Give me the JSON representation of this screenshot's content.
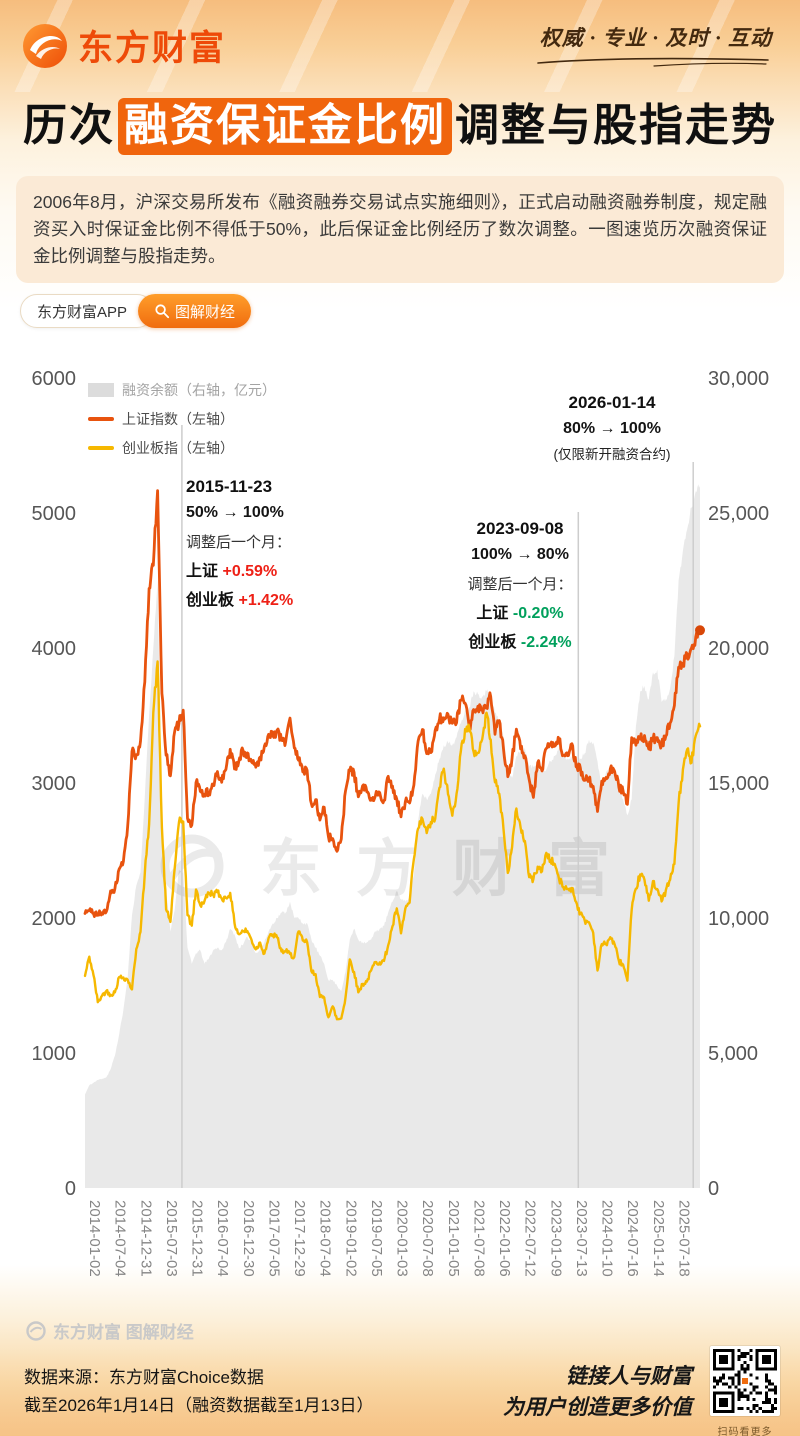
{
  "header": {
    "brand": "东方财富",
    "slogan": "权威 · 专业 · 及时 · 互动"
  },
  "title": {
    "prefix": "历次",
    "highlight": "融资保证金比例",
    "suffix": "调整与股指走势"
  },
  "intro": "2006年8月，沪深交易所发布《融资融券交易试点实施细则》，正式启动融资融券制度，规定融资买入时保证金比例不得低于50%，此后保证金比例经历了数次调整。一图速览历次融资保证金比例调整与股指走势。",
  "pills": {
    "app": "东方财富APP",
    "column": "图解财经"
  },
  "watermark": {
    "center": "东方财富",
    "footer": "东方财富 图解财经"
  },
  "chart_data": {
    "type": "line",
    "title": "历次融资保证金比例调整与股指走势",
    "months_start": "2014-01",
    "months_end": "2026-01",
    "left_axis": {
      "min": 0,
      "max": 6000,
      "label_ticks": [
        "6000",
        "5000",
        "4000",
        "3000",
        "2000",
        "1000",
        "0"
      ]
    },
    "right_axis": {
      "min": 0,
      "max": 30000,
      "label_ticks": [
        "30,000",
        "25,000",
        "20,000",
        "15,000",
        "10,000",
        "5,000",
        "0"
      ]
    },
    "x_tick_labels": [
      "2014-01-02",
      "2014-07-04",
      "2014-12-31",
      "2015-07-03",
      "2015-12-31",
      "2016-07-04",
      "2016-12-30",
      "2017-07-05",
      "2017-12-29",
      "2018-07-04",
      "2019-01-02",
      "2019-07-05",
      "2020-01-03",
      "2020-07-08",
      "2021-01-05",
      "2021-07-08",
      "2022-01-06",
      "2022-07-12",
      "2023-01-09",
      "2023-07-13",
      "2024-01-10",
      "2024-07-16",
      "2025-01-14",
      "2025-07-18"
    ],
    "x_tick_indices": [
      0,
      6,
      12,
      18,
      24,
      30,
      36,
      42,
      48,
      54,
      60,
      66,
      72,
      78,
      84,
      90,
      96,
      102,
      108,
      114,
      120,
      126,
      132,
      138
    ],
    "legend": [
      {
        "label": "融资余额（右轴，亿元）",
        "type": "area",
        "color": "#dcdcdc"
      },
      {
        "label": "上证指数（左轴）",
        "type": "line",
        "color": "#e8530e"
      },
      {
        "label": "创业板指（左轴）",
        "type": "line",
        "color": "#f6b800"
      }
    ],
    "series": [
      {
        "name": "融资余额",
        "axis": "right",
        "type": "area",
        "color": "#e6e6e6",
        "unit": "亿元",
        "values": [
          3465,
          3800,
          3900,
          4000,
          4050,
          4100,
          4400,
          4900,
          5700,
          6600,
          7800,
          10100,
          11200,
          11700,
          14500,
          17500,
          20000,
          22500,
          13500,
          11000,
          9500,
          10300,
          11800,
          11700,
          8900,
          8300,
          8700,
          8800,
          8300,
          8500,
          8800,
          8900,
          8800,
          9100,
          9600,
          9400,
          8900,
          9000,
          9300,
          9100,
          8700,
          8800,
          9100,
          9500,
          9800,
          10000,
          10200,
          10200,
          10600,
          10000,
          10000,
          9800,
          9800,
          9200,
          8900,
          8600,
          8300,
          7700,
          7700,
          7500,
          7300,
          8000,
          9200,
          9600,
          9200,
          9100,
          9100,
          9200,
          9500,
          9600,
          9700,
          10200,
          10600,
          11000,
          10700,
          10600,
          10800,
          11600,
          13600,
          14600,
          14400,
          14600,
          15300,
          15900,
          16400,
          16500,
          16400,
          16700,
          17200,
          17700,
          17800,
          18400,
          18300,
          18200,
          18400,
          18300,
          17600,
          17300,
          16700,
          15400,
          15200,
          16000,
          16200,
          16300,
          15600,
          15600,
          15700,
          15400,
          15500,
          15800,
          16000,
          16300,
          16100,
          15900,
          15900,
          15700,
          15900,
          16100,
          16600,
          16500,
          15800,
          14700,
          15400,
          15400,
          15300,
          14800,
          14400,
          13800,
          14400,
          17100,
          18400,
          18600,
          18100,
          19100,
          19200,
          18000,
          18100,
          18500,
          19700,
          22500,
          23600,
          24400,
          25200,
          25800,
          26000
        ]
      },
      {
        "name": "上证指数",
        "axis": "left",
        "type": "line",
        "color": "#e8530e",
        "values": [
          2033,
          2056,
          2033,
          2026,
          2039,
          2048,
          2201,
          2217,
          2363,
          2420,
          2682,
          3235,
          3210,
          3310,
          3748,
          4442,
          4612,
          5166,
          3664,
          3206,
          3053,
          3383,
          3445,
          3539,
          2738,
          2688,
          3004,
          2938,
          2917,
          2930,
          2979,
          3085,
          3005,
          3100,
          3250,
          3104,
          3159,
          3242,
          3223,
          3155,
          3117,
          3192,
          3273,
          3361,
          3349,
          3393,
          3317,
          3307,
          3481,
          3259,
          3169,
          3082,
          3095,
          2847,
          2876,
          2725,
          2821,
          2603,
          2588,
          2494,
          2585,
          2941,
          3091,
          3078,
          2898,
          2979,
          2933,
          2886,
          2905,
          2929,
          2872,
          3050,
          2977,
          2880,
          2750,
          2860,
          2852,
          2985,
          3310,
          3396,
          3218,
          3225,
          3392,
          3473,
          3483,
          3509,
          3442,
          3447,
          3615,
          3591,
          3397,
          3544,
          3568,
          3547,
          3564,
          3640,
          3361,
          3462,
          3252,
          3047,
          3186,
          3399,
          3253,
          3202,
          3024,
          2893,
          3151,
          3089,
          3256,
          3280,
          3273,
          3323,
          3205,
          3202,
          3291,
          3120,
          3110,
          3019,
          3030,
          2975,
          2789,
          3015,
          3041,
          3105,
          3087,
          2967,
          2939,
          2842,
          3336,
          3280,
          3326,
          3352,
          3251,
          3321,
          3336,
          3279,
          3347,
          3444,
          3573,
          3858,
          3883,
          3955,
          4000,
          4080,
          4131
        ]
      },
      {
        "name": "创业板指",
        "axis": "left",
        "type": "line",
        "color": "#f6b800",
        "values": [
          1571,
          1713,
          1576,
          1376,
          1425,
          1460,
          1432,
          1450,
          1562,
          1559,
          1542,
          1471,
          1770,
          1897,
          2329,
          2693,
          3522,
          3900,
          2671,
          2063,
          1971,
          2369,
          2711,
          2714,
          2021,
          1944,
          2210,
          2094,
          2129,
          2187,
          2178,
          2191,
          2145,
          2148,
          2186,
          1962,
          1880,
          1904,
          1904,
          1836,
          1768,
          1818,
          1737,
          1852,
          1876,
          1855,
          1752,
          1752,
          1733,
          1711,
          1900,
          1833,
          1822,
          1606,
          1584,
          1415,
          1411,
          1265,
          1345,
          1250,
          1256,
          1410,
          1693,
          1600,
          1450,
          1511,
          1529,
          1611,
          1673,
          1671,
          1682,
          1798,
          1939,
          2071,
          1887,
          2069,
          2114,
          2438,
          2663,
          2735,
          2629,
          2710,
          2734,
          2966,
          3106,
          2918,
          2758,
          2923,
          3232,
          3399,
          3404,
          3232,
          3222,
          3323,
          3521,
          3322,
          3005,
          2920,
          2659,
          2334,
          2525,
          2811,
          2670,
          2570,
          2303,
          2288,
          2380,
          2346,
          2482,
          2429,
          2399,
          2286,
          2229,
          2215,
          2222,
          2119,
          2030,
          1981,
          1968,
          1891,
          1611,
          1807,
          1808,
          1858,
          1806,
          1683,
          1654,
          1536,
          2061,
          2217,
          2323,
          2282,
          2128,
          2273,
          2214,
          2123,
          2205,
          2283,
          2400,
          2850,
          3100,
          3250,
          3150,
          3350,
          3420
        ]
      }
    ],
    "events": [
      {
        "date": "2015-11-23",
        "x_index": 22.7,
        "line_top": 425,
        "change": "50% → 100%",
        "follow_label": "调整后一个月：",
        "rows": [
          {
            "name": "上证",
            "value": "+0.59%"
          },
          {
            "name": "创业板",
            "value": "+1.42%"
          }
        ],
        "direction": "up"
      },
      {
        "date": "2023-09-08",
        "x_index": 115.5,
        "line_top": 512,
        "change": "100% → 80%",
        "follow_label": "调整后一个月：",
        "rows": [
          {
            "name": "上证",
            "value": "-0.20%"
          },
          {
            "name": "创业板",
            "value": "-2.24%"
          }
        ],
        "direction": "down"
      },
      {
        "date": "2026-01-14",
        "x_index": 142.4,
        "line_top": 462,
        "change": "80% → 100%",
        "note": "(仅限新开融资合约)"
      }
    ]
  },
  "footer": {
    "source_line1": "数据来源：东方财富Choice数据",
    "source_line2": "截至2026年1月14日（融资数据截至1月13日）",
    "slogan_line1": "链接人与财富",
    "slogan_line2": "为用户创造更多价值",
    "qr_caption": "扫码看更多"
  }
}
